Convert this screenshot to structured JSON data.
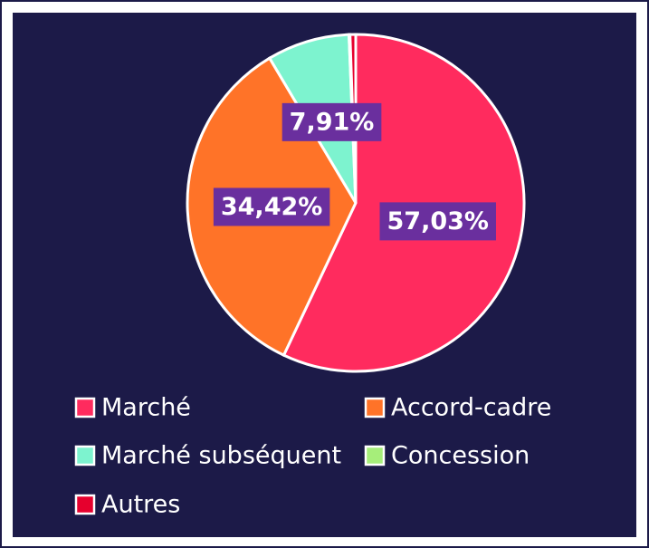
{
  "chart_data": {
    "type": "pie",
    "categories": [
      "Marché",
      "Accord-cadre",
      "Marché subséquent",
      "Concession",
      "Autres"
    ],
    "values": [
      57.03,
      34.42,
      7.91,
      0.1,
      0.54
    ],
    "value_labels": [
      "57,03%",
      "34,42%",
      "7,91%",
      null,
      null
    ],
    "colors": [
      "#ff2b5e",
      "#ff7328",
      "#7df3cf",
      "#a6ee7a",
      "#e6002d"
    ],
    "legend": "bottom"
  }
}
